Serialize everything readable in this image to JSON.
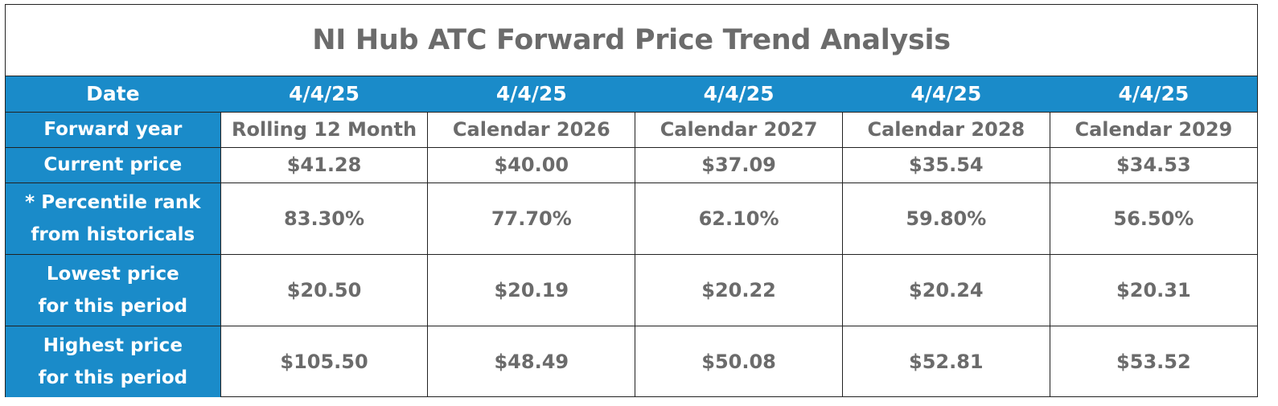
{
  "title": "NI Hub ATC Forward Price Trend Analysis",
  "row_labels": {
    "date": "Date",
    "forward_year": "Forward year",
    "current_price": "Current price",
    "percentile_line1": "* Percentile rank",
    "percentile_line2": "from historicals",
    "lowest_line1": "Lowest price",
    "lowest_line2": "for this period",
    "highest_line1": "Highest price",
    "highest_line2": "for this period"
  },
  "columns": [
    {
      "date": "4/4/25",
      "forward_year": "Rolling 12 Month",
      "current_price": "$41.28",
      "percentile": "83.30%",
      "lowest": "$20.50",
      "highest": "$105.50"
    },
    {
      "date": "4/4/25",
      "forward_year": "Calendar 2026",
      "current_price": "$40.00",
      "percentile": "77.70%",
      "lowest": "$20.19",
      "highest": "$48.49"
    },
    {
      "date": "4/4/25",
      "forward_year": "Calendar 2027",
      "current_price": "$37.09",
      "percentile": "62.10%",
      "lowest": "$20.22",
      "highest": "$50.08"
    },
    {
      "date": "4/4/25",
      "forward_year": "Calendar 2028",
      "current_price": "$35.54",
      "percentile": "59.80%",
      "lowest": "$20.24",
      "highest": "$52.81"
    },
    {
      "date": "4/4/25",
      "forward_year": "Calendar 2029",
      "current_price": "$34.53",
      "percentile": "56.50%",
      "lowest": "$20.31",
      "highest": "$53.52"
    }
  ],
  "colors": {
    "header_blue": "#1a8bc9",
    "value_gray": "#6b6b6b",
    "border": "#222222"
  }
}
